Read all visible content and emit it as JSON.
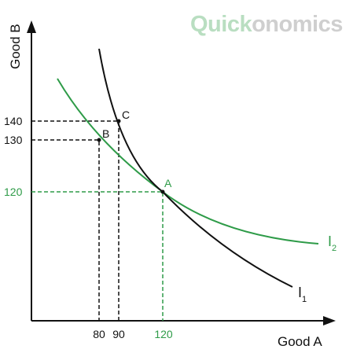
{
  "brand": {
    "part1": "Quick",
    "part2": "onomics"
  },
  "axes": {
    "y_label": "Good B",
    "x_label": "Good A"
  },
  "x_ticks": [
    "80",
    "90",
    "120"
  ],
  "y_ticks": [
    "140",
    "130",
    "120"
  ],
  "points": [
    "C",
    "B",
    "A"
  ],
  "curves": [
    {
      "label": "I",
      "subscript": "1"
    },
    {
      "label": "I",
      "subscript": "2"
    }
  ]
}
